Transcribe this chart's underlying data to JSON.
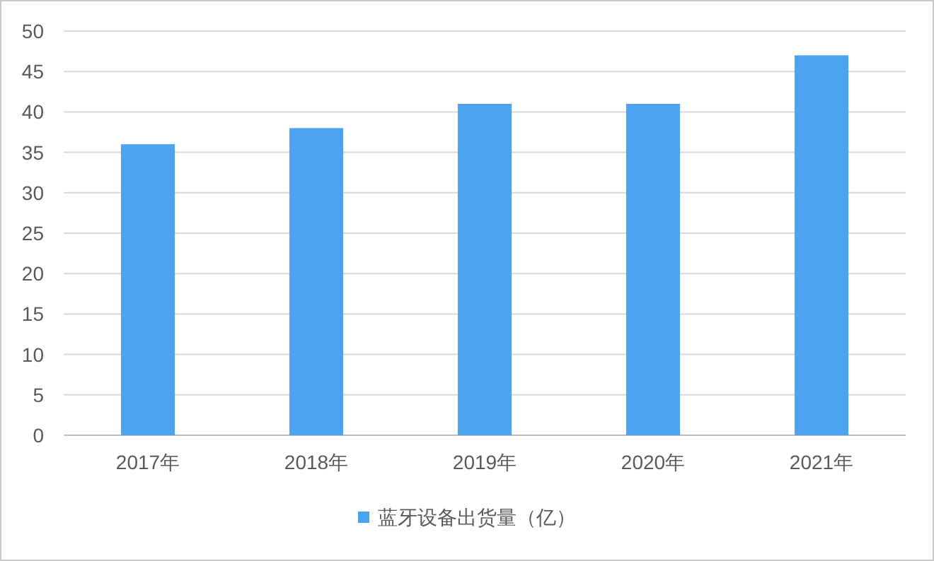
{
  "chart_data": {
    "type": "bar",
    "categories": [
      "2017年",
      "2018年",
      "2019年",
      "2020年",
      "2021年"
    ],
    "series": [
      {
        "name": "蓝牙设备出货量（亿）",
        "color": "#4da3f0",
        "values": [
          36,
          38,
          41,
          41,
          47
        ]
      }
    ],
    "ylim": [
      0,
      50
    ],
    "yticks": [
      0,
      5,
      10,
      15,
      20,
      25,
      30,
      35,
      40,
      45,
      50
    ],
    "grid": "y",
    "legend": "bottom"
  }
}
